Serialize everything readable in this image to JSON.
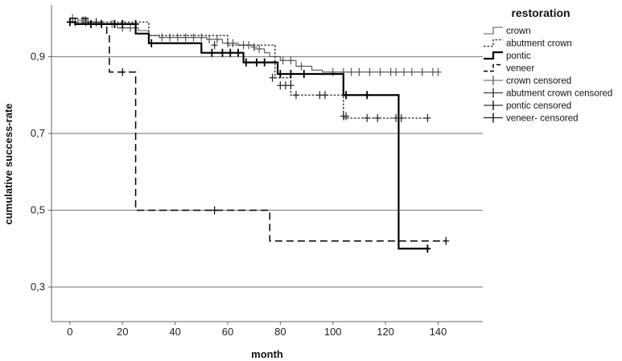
{
  "chart_data": {
    "type": "line",
    "subtype": "kaplan-meier step",
    "title": "",
    "xlabel": "month",
    "ylabel": "cumulative success-rate",
    "xlim": [
      -7,
      157
    ],
    "ylim": [
      0.21,
      1.035
    ],
    "x_ticks": [
      0,
      20,
      40,
      60,
      80,
      100,
      120,
      140
    ],
    "y_ticks": [
      0.3,
      0.5,
      0.7,
      0.9
    ],
    "y_tick_labels": [
      "0,3",
      "0,5",
      "0,7",
      "0,9"
    ],
    "y_gridlines": [
      0.3,
      0.5,
      0.7,
      0.9
    ],
    "grid": "horizontal at y ticks",
    "legend": {
      "title": "restoration",
      "placement": "right",
      "entries": [
        "crown",
        "abutment crown",
        "pontic",
        "veneer",
        "crown censored",
        "abutment crown censored",
        "pontic censored",
        "veneer- censored"
      ]
    },
    "series": [
      {
        "name": "crown",
        "line_style": "thin solid",
        "color": "#555555",
        "steps": [
          [
            0,
            1.0
          ],
          [
            3,
            0.995
          ],
          [
            7,
            0.99
          ],
          [
            12,
            0.985
          ],
          [
            18,
            0.975
          ],
          [
            26,
            0.968
          ],
          [
            30,
            0.955
          ],
          [
            34,
            0.95
          ],
          [
            52,
            0.945
          ],
          [
            58,
            0.935
          ],
          [
            64,
            0.93
          ],
          [
            70,
            0.92
          ],
          [
            74,
            0.91
          ],
          [
            76,
            0.9
          ],
          [
            80,
            0.89
          ],
          [
            86,
            0.875
          ],
          [
            92,
            0.865
          ],
          [
            96,
            0.86
          ],
          [
            140,
            0.86
          ]
        ],
        "censored": [
          [
            1,
            1.0
          ],
          [
            5,
            0.995
          ],
          [
            6,
            0.995
          ],
          [
            10,
            0.99
          ],
          [
            16,
            0.985
          ],
          [
            20,
            0.975
          ],
          [
            23,
            0.975
          ],
          [
            35,
            0.95
          ],
          [
            38,
            0.95
          ],
          [
            41,
            0.95
          ],
          [
            44,
            0.95
          ],
          [
            47,
            0.95
          ],
          [
            50,
            0.95
          ],
          [
            53,
            0.945
          ],
          [
            56,
            0.945
          ],
          [
            60,
            0.935
          ],
          [
            62,
            0.935
          ],
          [
            66,
            0.93
          ],
          [
            68,
            0.93
          ],
          [
            70,
            0.925
          ],
          [
            72,
            0.92
          ],
          [
            81,
            0.89
          ],
          [
            84,
            0.89
          ],
          [
            88,
            0.875
          ],
          [
            100,
            0.86
          ],
          [
            104,
            0.86
          ],
          [
            107,
            0.86
          ],
          [
            110,
            0.86
          ],
          [
            114,
            0.86
          ],
          [
            118,
            0.86
          ],
          [
            122,
            0.86
          ],
          [
            124,
            0.86
          ],
          [
            127,
            0.86
          ],
          [
            130,
            0.86
          ],
          [
            134,
            0.86
          ],
          [
            138,
            0.86
          ],
          [
            140,
            0.86
          ]
        ]
      },
      {
        "name": "abutment crown",
        "line_style": "dotted",
        "color": "#222222",
        "steps": [
          [
            0,
            0.99
          ],
          [
            30,
            0.955
          ],
          [
            60,
            0.93
          ],
          [
            78,
            0.845
          ],
          [
            84,
            0.8
          ],
          [
            104,
            0.74
          ],
          [
            136,
            0.74
          ]
        ],
        "censored": [
          [
            2,
            0.99
          ],
          [
            6,
            0.99
          ],
          [
            10,
            0.99
          ],
          [
            55,
            0.93
          ],
          [
            77,
            0.845
          ],
          [
            80,
            0.825
          ],
          [
            82,
            0.825
          ],
          [
            84,
            0.825
          ],
          [
            86,
            0.8
          ],
          [
            95,
            0.8
          ],
          [
            97,
            0.8
          ],
          [
            104,
            0.745
          ],
          [
            105,
            0.745
          ],
          [
            113,
            0.74
          ],
          [
            117,
            0.74
          ],
          [
            124,
            0.74
          ],
          [
            126,
            0.74
          ],
          [
            136,
            0.74
          ]
        ]
      },
      {
        "name": "pontic",
        "line_style": "thick solid",
        "color": "#000000",
        "steps": [
          [
            0,
            0.99
          ],
          [
            2,
            0.985
          ],
          [
            25,
            0.96
          ],
          [
            30,
            0.935
          ],
          [
            50,
            0.91
          ],
          [
            66,
            0.885
          ],
          [
            79,
            0.855
          ],
          [
            104,
            0.8
          ],
          [
            125,
            0.4
          ],
          [
            136,
            0.4
          ]
        ],
        "censored": [
          [
            0,
            0.99
          ],
          [
            8,
            0.985
          ],
          [
            12,
            0.985
          ],
          [
            17,
            0.985
          ],
          [
            20,
            0.985
          ],
          [
            25,
            0.985
          ],
          [
            31,
            0.935
          ],
          [
            54,
            0.91
          ],
          [
            58,
            0.91
          ],
          [
            61,
            0.91
          ],
          [
            64,
            0.91
          ],
          [
            67,
            0.885
          ],
          [
            71,
            0.885
          ],
          [
            74,
            0.885
          ],
          [
            80,
            0.855
          ],
          [
            84,
            0.855
          ],
          [
            89,
            0.855
          ],
          [
            105,
            0.8
          ],
          [
            113,
            0.8
          ],
          [
            136,
            0.4
          ]
        ]
      },
      {
        "name": "veneer",
        "line_style": "dashed",
        "color": "#000000",
        "steps": [
          [
            0,
            1.0
          ],
          [
            7,
            0.985
          ],
          [
            14,
            0.957
          ],
          [
            15,
            0.86
          ],
          [
            25,
            0.5
          ],
          [
            76,
            0.42
          ],
          [
            143,
            0.42
          ]
        ],
        "censored": [
          [
            20,
            0.86
          ],
          [
            55,
            0.5
          ],
          [
            143,
            0.42
          ]
        ]
      }
    ]
  }
}
